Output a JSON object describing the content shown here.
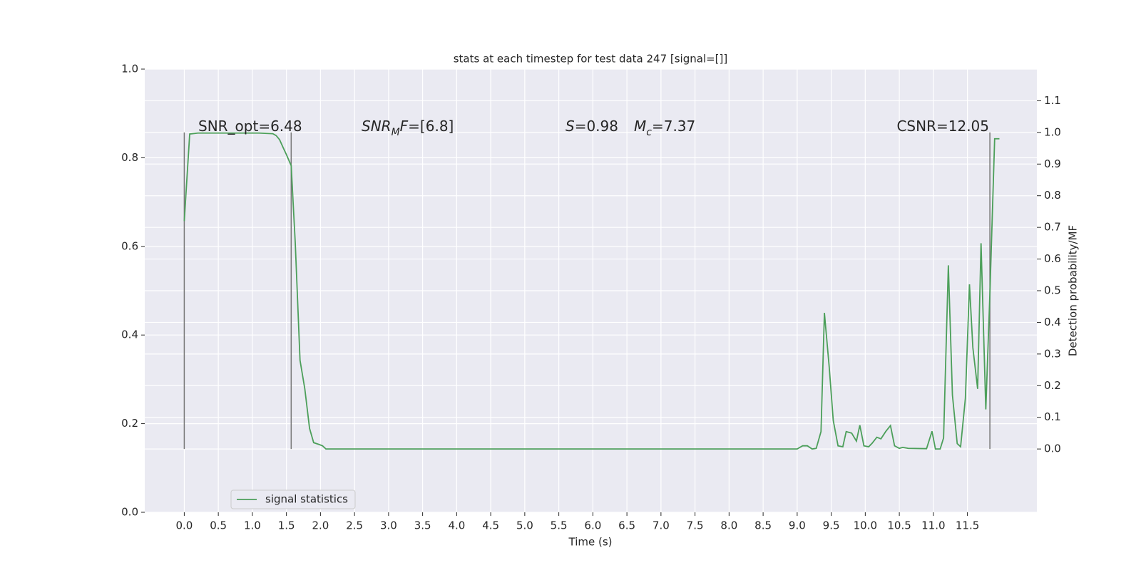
{
  "chart_data": {
    "type": "line",
    "title": "stats at each timestep for test data 247 [signal=[]]",
    "xlabel": "Time (s)",
    "y2label": "Detection probability/MF",
    "xlim": [
      -0.58,
      12.52
    ],
    "ylim": [
      0,
      1
    ],
    "y2lim": [
      -0.2,
      1.2
    ],
    "xticks": [
      {
        "value": 0,
        "label": "0.0"
      },
      0.5,
      {
        "value": 1,
        "label": "1.0"
      },
      1.5,
      {
        "value": 2,
        "label": "2.0"
      },
      2.5,
      {
        "value": 3,
        "label": "3.0"
      },
      3.5,
      {
        "value": 4,
        "label": "4.0"
      },
      4.5,
      {
        "value": 5,
        "label": "5.0"
      },
      5.5,
      {
        "value": 6,
        "label": "6.0"
      },
      6.5,
      {
        "value": 7,
        "label": "7.0"
      },
      7.5,
      {
        "value": 8,
        "label": "8.0"
      },
      8.5,
      {
        "value": 9,
        "label": "9.0"
      },
      9.5,
      {
        "value": 10,
        "label": "10.0"
      },
      10.5,
      {
        "value": 11,
        "label": "11.0"
      },
      11.5
    ],
    "yticks": [
      {
        "value": 0,
        "label": "0.0"
      },
      0.2,
      0.4,
      0.6,
      0.8,
      {
        "value": 1,
        "label": "1.0"
      }
    ],
    "y2ticks": [
      {
        "value": 0,
        "label": "0.0"
      },
      0.1,
      0.2,
      0.3,
      0.4,
      0.5,
      0.6,
      0.7,
      0.8,
      0.9,
      {
        "value": 1,
        "label": "1.0"
      },
      1.1
    ],
    "grid": true,
    "legend": "lower left",
    "x": [
      0,
      0.08,
      0.2,
      0.5,
      0.8,
      1.1,
      1.3,
      1.35,
      1.4,
      1.45,
      1.5,
      1.57,
      1.63,
      1.7,
      1.77,
      1.84,
      1.9,
      1.97,
      2.03,
      2.08,
      4.0,
      6.0,
      8.0,
      9.0,
      9.08,
      9.15,
      9.22,
      9.28,
      9.35,
      9.4,
      9.47,
      9.53,
      9.6,
      9.67,
      9.72,
      9.8,
      9.87,
      9.92,
      9.98,
      10.05,
      10.1,
      10.17,
      10.23,
      10.3,
      10.37,
      10.43,
      10.5,
      10.55,
      10.63,
      10.9,
      10.98,
      11.03,
      11.1,
      11.15,
      11.22,
      11.28,
      11.35,
      11.4,
      11.47,
      11.53,
      11.58,
      11.65,
      11.7,
      11.77,
      11.83,
      11.9,
      11.97
    ],
    "series": [
      {
        "name": "signal statistics",
        "color": "#4c9f5a",
        "axis": "y2",
        "values": [
          0.72,
          0.995,
          0.998,
          0.998,
          0.998,
          0.998,
          0.996,
          0.99,
          0.977,
          0.953,
          0.93,
          0.895,
          0.65,
          0.28,
          0.19,
          0.065,
          0.02,
          0.015,
          0.01,
          0,
          0,
          0,
          0,
          0,
          0.01,
          0.01,
          0,
          0.002,
          0.055,
          0.43,
          0.26,
          0.09,
          0.01,
          0.007,
          0.055,
          0.05,
          0.025,
          0.075,
          0.01,
          0.007,
          0.018,
          0.037,
          0.032,
          0.055,
          0.074,
          0.01,
          0.002,
          0.005,
          0.002,
          0.001,
          0.056,
          0,
          0,
          0.035,
          0.58,
          0.17,
          0.017,
          0.007,
          0.16,
          0.52,
          0.32,
          0.19,
          0.65,
          0.125,
          0.49,
          0.98,
          0.98
        ]
      }
    ],
    "vlines": [
      0,
      1.57,
      11.83
    ],
    "vline_range": [
      0,
      1
    ],
    "vline_color": "#777777",
    "annotations": [
      [
        {
          "text": "SNR_opt=6.48",
          "style": "normal"
        }
      ],
      [
        {
          "text": "SNR",
          "style": "italic"
        },
        {
          "text": "M",
          "style": "italic-sub"
        },
        {
          "text": "F",
          "style": "italic"
        },
        {
          "text": "=[6.8]",
          "style": "normal"
        }
      ],
      [
        {
          "text": "S",
          "style": "italic"
        },
        {
          "text": "=0.98",
          "style": "normal"
        }
      ],
      [
        {
          "text": "M",
          "style": "italic"
        },
        {
          "text": "c",
          "style": "italic-sub"
        },
        {
          "text": "=7.37",
          "style": "normal"
        }
      ],
      [
        {
          "text": "CSNR=12.05",
          "style": "normal"
        }
      ]
    ]
  }
}
